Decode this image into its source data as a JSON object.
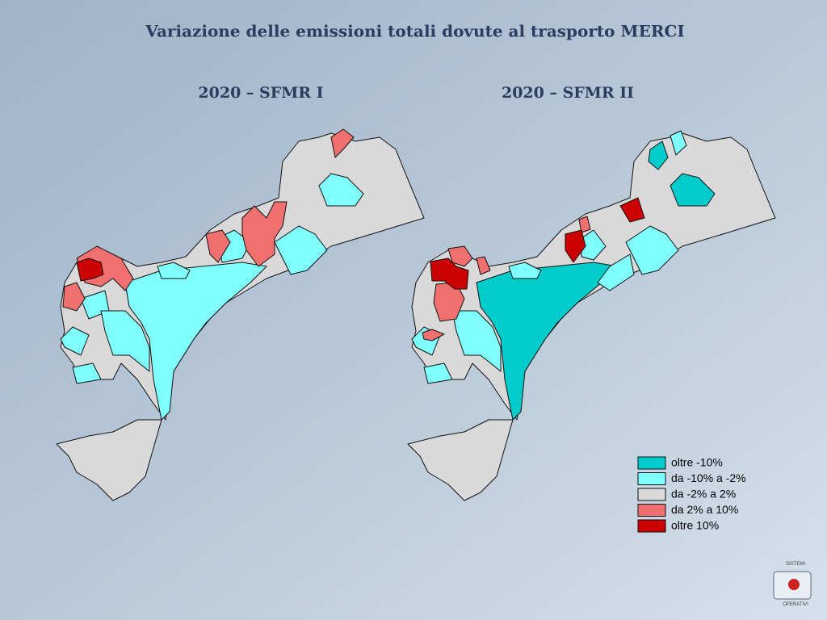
{
  "title": "Variazione delle emissioni totali dovute al trasporto MERCI",
  "maps": [
    {
      "title": "2020 – SFMR I"
    },
    {
      "title": "2020 – SFMR II"
    }
  ],
  "legend": [
    {
      "label": "oltre -10%",
      "color": "#00cccc"
    },
    {
      "label": "da -10% a -2%",
      "color": "#80ffff"
    },
    {
      "label": "da -2% a 2%",
      "color": "#d9d9d9"
    },
    {
      "label": "da 2% a 10%",
      "color": "#f07070"
    },
    {
      "label": "oltre 10%",
      "color": "#cc0000"
    }
  ],
  "logo": {
    "top": "SISTEMI",
    "bottom": "OPERATIVI"
  }
}
